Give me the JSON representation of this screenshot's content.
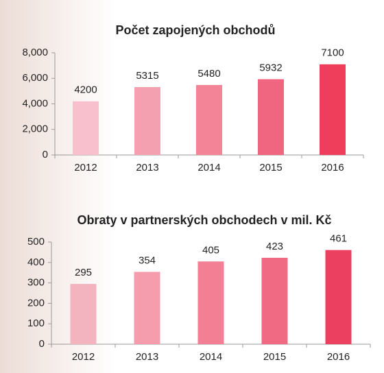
{
  "chart_data": [
    {
      "type": "bar",
      "title": "Počet zapojených obchodů",
      "categories": [
        "2012",
        "2013",
        "2014",
        "2015",
        "2016"
      ],
      "values": [
        4200,
        5315,
        5480,
        5932,
        7100
      ],
      "colors": [
        "#f7c0cc",
        "#f5a0b0",
        "#f38497",
        "#f06580",
        "#ef3d5c"
      ],
      "ylim": [
        0,
        8000
      ],
      "yticks": [
        0,
        {
          "value": 2000,
          "label": "2,000"
        },
        {
          "value": 4000,
          "label": "4,000"
        },
        {
          "value": 6000,
          "label": "6,000"
        },
        {
          "value": 8000,
          "label": "8,000"
        }
      ]
    },
    {
      "type": "bar",
      "title": "Obraty v partnerských obchodech v mil. Kč",
      "categories": [
        "2012",
        "2013",
        "2014",
        "2015",
        "2016"
      ],
      "values": [
        295,
        354,
        405,
        423,
        461
      ],
      "colors": [
        "#f3b4bf",
        "#f59dad",
        "#f27f93",
        "#ef6a82",
        "#ec4060"
      ],
      "ylim": [
        0,
        500
      ],
      "yticks": [
        0,
        100,
        200,
        300,
        400,
        500
      ]
    }
  ]
}
